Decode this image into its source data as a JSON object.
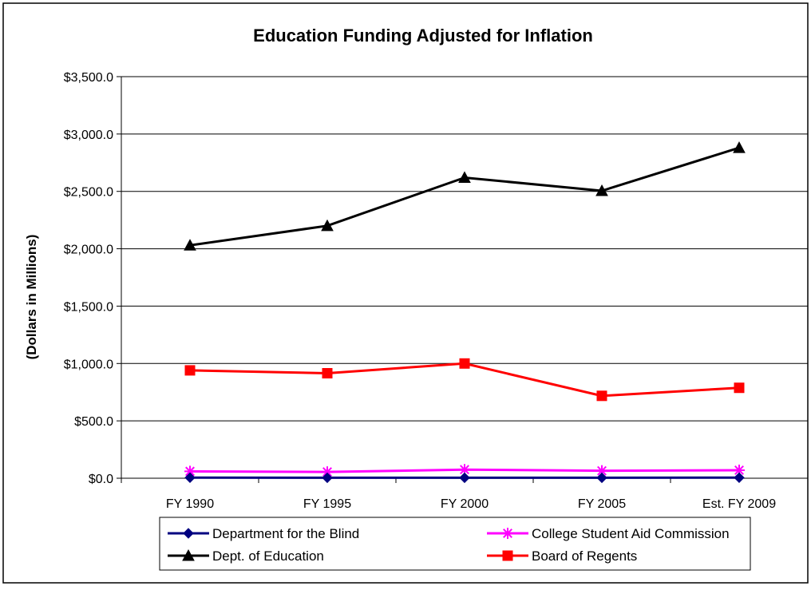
{
  "chart_data": {
    "type": "line",
    "title": "Education Funding Adjusted for Inflation",
    "xlabel": "",
    "ylabel": "(Dollars in Millions)",
    "categories": [
      "FY 1990",
      "FY 1995",
      "FY 2000",
      "FY 2005",
      "Est. FY 2009"
    ],
    "ylim": [
      0,
      3500
    ],
    "yticks": [
      0,
      500,
      1000,
      1500,
      2000,
      2500,
      3000,
      3500
    ],
    "ytick_labels": [
      "$0.0",
      "$500.0",
      "$1,000.0",
      "$1,500.0",
      "$2,000.0",
      "$2,500.0",
      "$3,000.0",
      "$3,500.0"
    ],
    "grid": true,
    "legend_position": "bottom",
    "series": [
      {
        "name": "Department for the Blind",
        "color": "#000080",
        "marker": "diamond",
        "values": [
          5,
          4,
          4,
          4,
          5
        ]
      },
      {
        "name": "College Student Aid Commission",
        "color": "#ff00ff",
        "marker": "asterisk",
        "values": [
          60,
          55,
          75,
          65,
          70
        ]
      },
      {
        "name": "Dept. of Education",
        "color": "#000000",
        "marker": "triangle",
        "values": [
          2030,
          2200,
          2620,
          2505,
          2880
        ]
      },
      {
        "name": "Board of Regents",
        "color": "#ff0000",
        "marker": "square",
        "values": [
          940,
          915,
          1000,
          718,
          788
        ]
      }
    ]
  }
}
